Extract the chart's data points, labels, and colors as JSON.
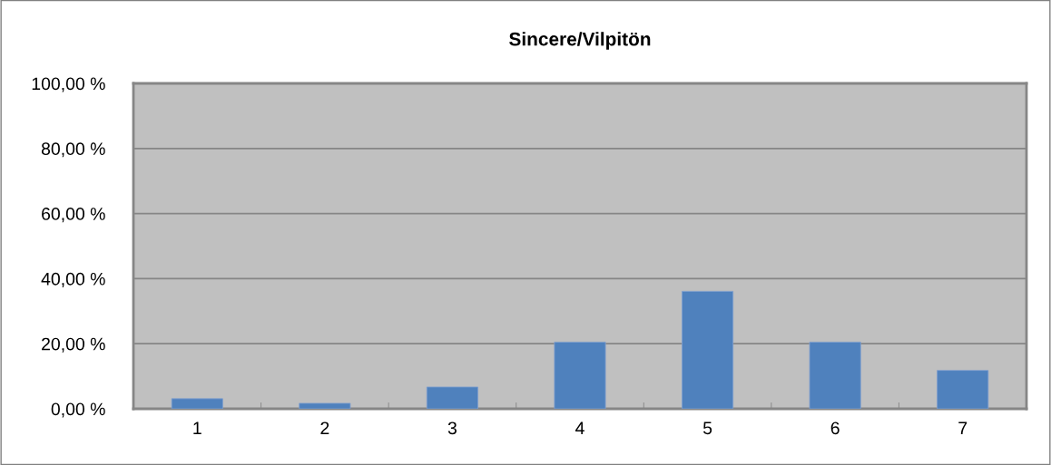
{
  "chart_data": {
    "type": "bar",
    "title": "Sincere/Vilpitön",
    "categories": [
      "1",
      "2",
      "3",
      "4",
      "5",
      "6",
      "7"
    ],
    "values": [
      3.1,
      1.7,
      6.7,
      20.5,
      36.1,
      20.5,
      11.8
    ],
    "color": "#4f81bd",
    "ylim": [
      0,
      100
    ],
    "yticks": [
      {
        "value": 0,
        "label": "0,00 %"
      },
      {
        "value": 20,
        "label": "20,00 %"
      },
      {
        "value": 40,
        "label": "40,00 %"
      },
      {
        "value": 60,
        "label": "60,00 %"
      },
      {
        "value": 80,
        "label": "80,00 %"
      },
      {
        "value": 100,
        "label": "100,00 %"
      }
    ],
    "grid": "y",
    "legend": false
  }
}
